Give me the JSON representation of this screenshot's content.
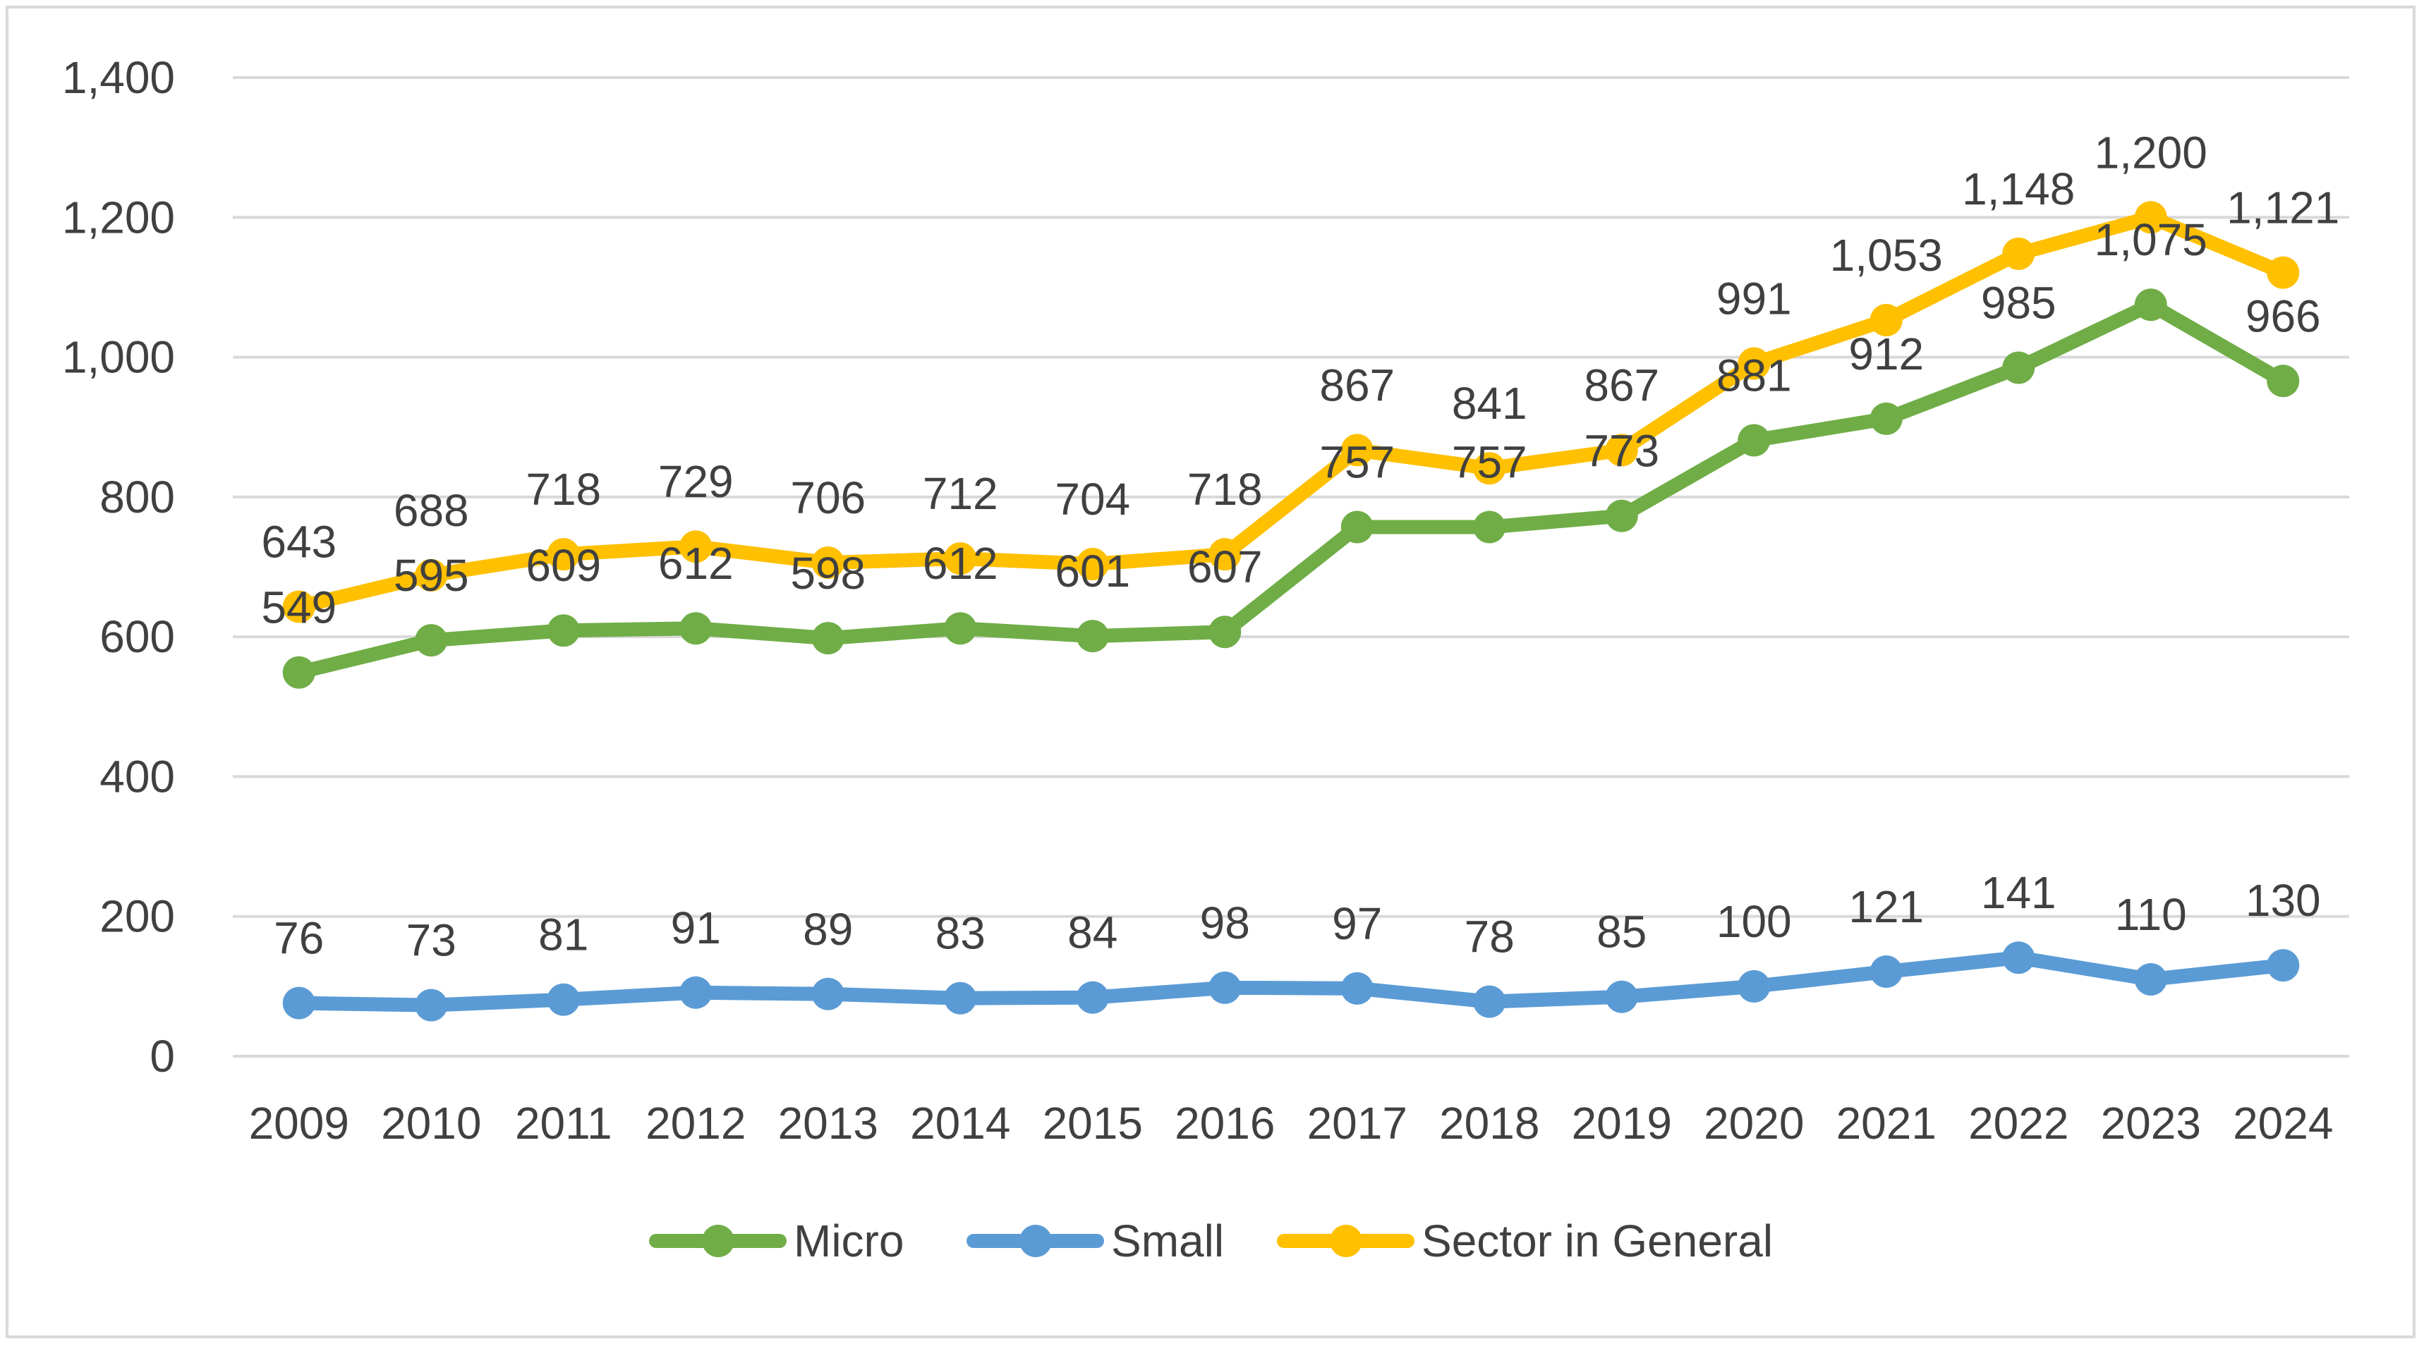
{
  "chart_data": {
    "type": "line",
    "title": "",
    "xlabel": "",
    "ylabel": "",
    "ylim": [
      0,
      1400
    ],
    "yticks": [
      0,
      200,
      400,
      600,
      800,
      1000,
      1200,
      1400
    ],
    "ytick_labels": [
      "0",
      "200",
      "400",
      "600",
      "800",
      "1,000",
      "1,200",
      "1,400"
    ],
    "grid": true,
    "legend_position": "bottom",
    "categories": [
      "2009",
      "2010",
      "2011",
      "2012",
      "2013",
      "2014",
      "2015",
      "2016",
      "2017",
      "2018",
      "2019",
      "2020",
      "2021",
      "2022",
      "2023",
      "2024"
    ],
    "series": [
      {
        "name": "Micro",
        "color": "#70ad47",
        "values": [
          549,
          595,
          609,
          612,
          598,
          612,
          601,
          607,
          757,
          757,
          773,
          881,
          912,
          985,
          1075,
          966
        ],
        "labels": [
          "549",
          "595",
          "609",
          "612",
          "598",
          "612",
          "601",
          "607",
          "757",
          "757",
          "773",
          "881",
          "912",
          "985",
          "1,075",
          "966"
        ]
      },
      {
        "name": "Small",
        "color": "#5b9bd5",
        "values": [
          76,
          73,
          81,
          91,
          89,
          83,
          84,
          98,
          97,
          78,
          85,
          100,
          121,
          141,
          110,
          130
        ],
        "labels": [
          "76",
          "73",
          "81",
          "91",
          "89",
          "83",
          "84",
          "98",
          "97",
          "78",
          "85",
          "100",
          "121",
          "141",
          "110",
          "130"
        ]
      },
      {
        "name": "Sector in General",
        "color": "#ffc000",
        "values": [
          643,
          688,
          718,
          729,
          706,
          712,
          704,
          718,
          867,
          841,
          867,
          991,
          1053,
          1148,
          1200,
          1121
        ],
        "labels": [
          "643",
          "688",
          "718",
          "729",
          "706",
          "712",
          "704",
          "718",
          "867",
          "841",
          "867",
          "991",
          "1,053",
          "1,148",
          "1,200",
          "1,121"
        ]
      }
    ]
  }
}
